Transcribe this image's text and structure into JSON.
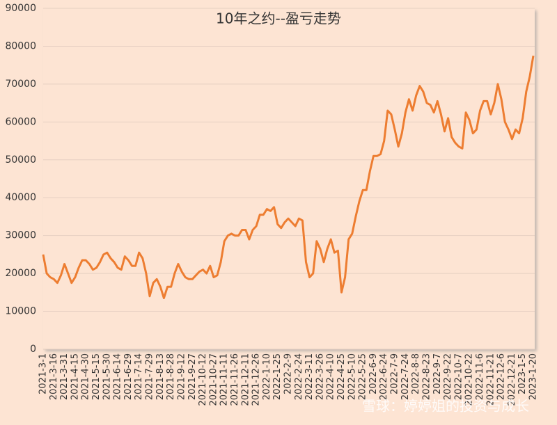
{
  "chart_data": {
    "type": "line",
    "title": "10年之约--盈亏走势",
    "watermark": "雪球：婷婷姐的投资与成长",
    "categories": [
      "2021-3-1",
      null,
      null,
      "2021-3-16",
      null,
      null,
      "2021-3-31",
      null,
      null,
      "2021-4-15",
      null,
      null,
      "2021-4-30",
      null,
      null,
      "2021-5-15",
      null,
      null,
      "2021-5-30",
      null,
      null,
      "2021-6-14",
      null,
      null,
      "2021-6-29",
      null,
      null,
      "2021-7-14",
      null,
      null,
      "2021-7-29",
      null,
      null,
      "2021-8-13",
      null,
      null,
      "2021-8-28",
      null,
      null,
      "2021-9-12",
      null,
      null,
      "2021-9-27",
      null,
      null,
      "2021-10-12",
      null,
      null,
      "2021-10-27",
      null,
      null,
      "2021-11-11",
      null,
      null,
      "2021-11-26",
      null,
      null,
      "2021-12-11",
      null,
      null,
      "2021-12-26",
      null,
      null,
      "2022-1-10",
      null,
      null,
      "2022-1-25",
      null,
      null,
      "2022-2-9",
      null,
      null,
      "2022-2-24",
      null,
      null,
      "2022-3-11",
      null,
      null,
      "2022-3-26",
      null,
      null,
      "2022-4-10",
      null,
      null,
      "2022-4-25",
      null,
      null,
      "2022-5-10",
      null,
      null,
      "2022-5-25",
      null,
      null,
      "2022-6-9",
      null,
      null,
      "2022-6-24",
      null,
      null,
      "2022-7-9",
      null,
      null,
      "2022-7-24",
      null,
      null,
      "2022-8-8",
      null,
      null,
      "2022-8-23",
      null,
      null,
      "2022-9-7",
      null,
      null,
      "2022-9-22",
      null,
      null,
      "2022-10-7",
      null,
      null,
      "2022-10-22",
      null,
      null,
      "2022-11-6",
      null,
      null,
      "2022-11-21",
      null,
      null,
      "2022-12-6",
      null,
      null,
      "2022-12-21",
      null,
      null,
      "2023-1-5",
      null,
      null,
      "2023-1-20"
    ],
    "series": [
      {
        "name": "盈亏",
        "color": "#ed7d31",
        "values": [
          25000,
          20000,
          19000,
          18500,
          17500,
          19500,
          22500,
          20000,
          17500,
          19000,
          21500,
          23500,
          23500,
          22500,
          21000,
          21500,
          23000,
          25000,
          25500,
          24000,
          23000,
          21500,
          21000,
          24500,
          23500,
          22000,
          22000,
          25500,
          24000,
          20000,
          14000,
          17500,
          18500,
          16500,
          13500,
          16500,
          16500,
          20000,
          22500,
          20500,
          19000,
          18500,
          18500,
          19500,
          20500,
          21000,
          20000,
          22000,
          19000,
          19500,
          23000,
          28500,
          30000,
          30500,
          30000,
          30000,
          31500,
          31500,
          29000,
          31500,
          32500,
          35500,
          35500,
          37000,
          36500,
          37500,
          33000,
          32000,
          33500,
          34500,
          33500,
          32500,
          34500,
          34000,
          23000,
          19000,
          20000,
          28500,
          26500,
          23000,
          26500,
          29000,
          25500,
          26000,
          15000,
          19000,
          29000,
          30500,
          35000,
          39000,
          42000,
          42000,
          47000,
          51000,
          51000,
          51500,
          55000,
          63000,
          62000,
          58000,
          53500,
          57000,
          62500,
          66000,
          63000,
          67000,
          69500,
          68000,
          65000,
          64500,
          62500,
          65500,
          62000,
          57500,
          61000,
          56000,
          54500,
          53500,
          53000,
          62500,
          60500,
          57000,
          58000,
          63000,
          65500,
          65500,
          62000,
          65000,
          70000,
          66000,
          60000,
          58000,
          55500,
          58000,
          57000,
          61000,
          68000,
          72000,
          77500
        ]
      }
    ],
    "ylim": [
      0,
      90000
    ],
    "yticks": [
      0,
      10000,
      20000,
      30000,
      40000,
      50000,
      60000,
      70000,
      80000,
      90000
    ],
    "grid": true
  }
}
